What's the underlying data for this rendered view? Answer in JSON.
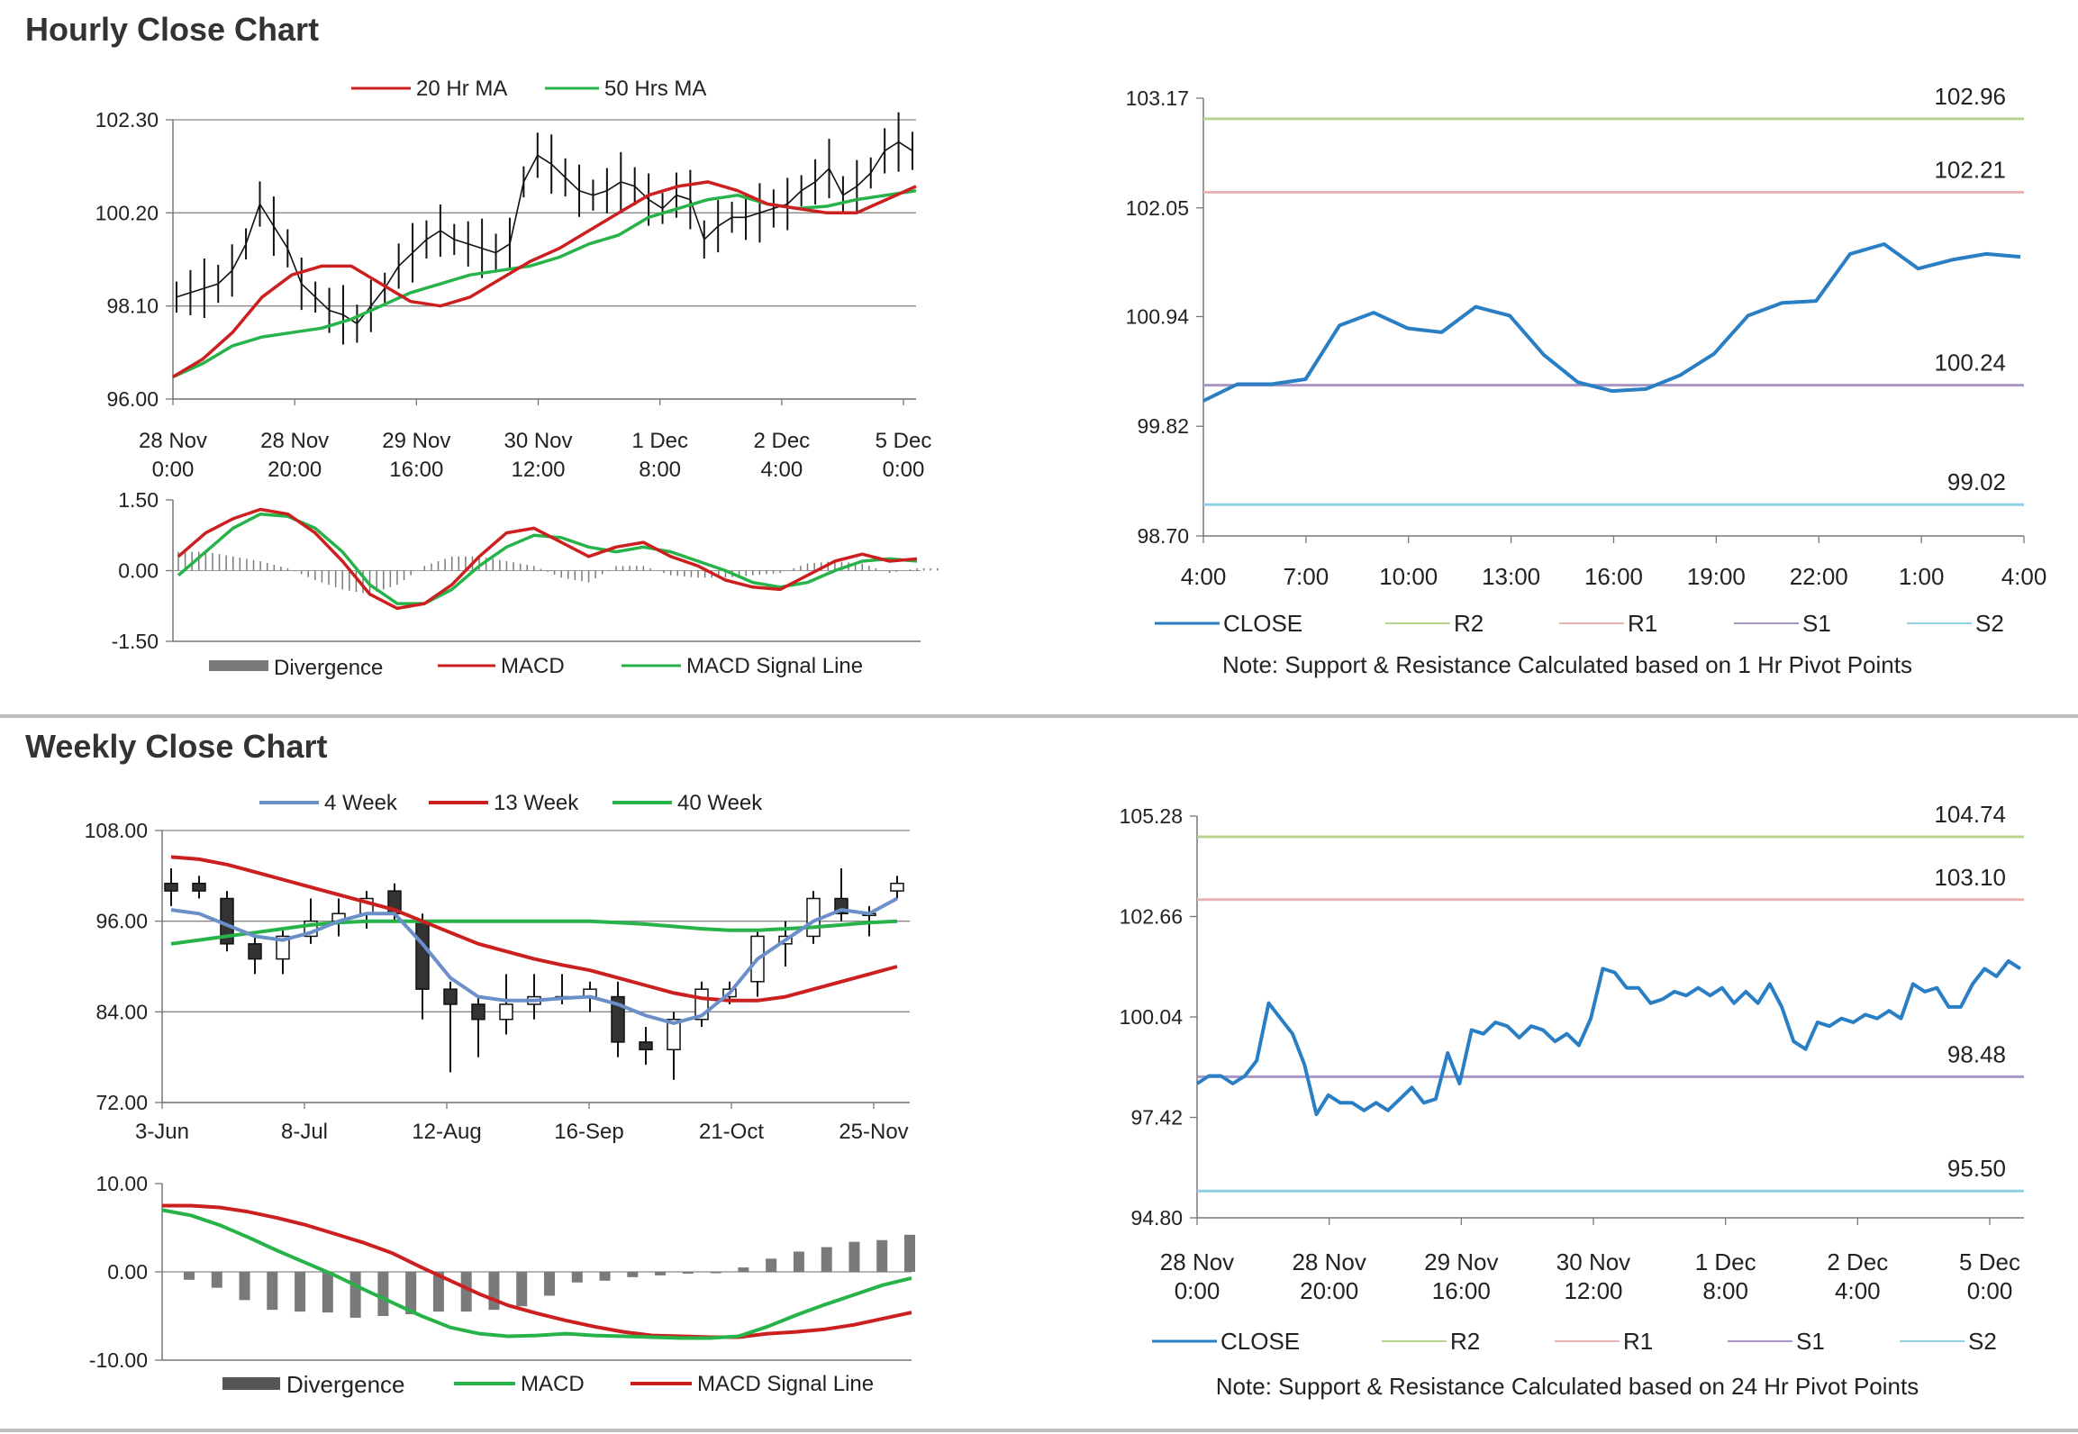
{
  "sections": {
    "hourly_title": "Hourly Close Chart",
    "weekly_title": "Weekly Close Chart"
  },
  "colors": {
    "close": "#2a7fc4",
    "r2": "#b7d38f",
    "r1": "#eab3b3",
    "s1": "#a896c8",
    "s2": "#8fd0e2",
    "ma_red": "#cc1f1f",
    "ma_green": "#27b34a",
    "ma_blue": "#6a8fc9",
    "divergence": "#7a7a7a",
    "candle": "#111111"
  },
  "chart_data": [
    {
      "id": "hourly_price",
      "type": "candlestick",
      "legend": [
        "20 Hr MA",
        "50 Hrs MA"
      ],
      "ylim": [
        96.0,
        102.3
      ],
      "yticks": [
        "102.30",
        "100.20",
        "98.10",
        "96.00"
      ],
      "xticks": [
        [
          "28 Nov",
          "0:00"
        ],
        [
          "28 Nov",
          "20:00"
        ],
        [
          "29 Nov",
          "16:00"
        ],
        [
          "30 Nov",
          "12:00"
        ],
        [
          "1 Dec",
          "8:00"
        ],
        [
          "2 Dec",
          "4:00"
        ],
        [
          "5 Dec",
          "0:00"
        ]
      ],
      "close_path": [
        98.3,
        98.4,
        98.5,
        98.6,
        98.9,
        99.5,
        100.4,
        99.9,
        99.4,
        98.6,
        98.3,
        98.0,
        97.9,
        97.7,
        98.1,
        98.5,
        99.0,
        99.3,
        99.6,
        99.8,
        99.6,
        99.5,
        99.4,
        99.3,
        99.5,
        100.9,
        101.5,
        101.3,
        101.0,
        100.7,
        100.6,
        100.7,
        100.9,
        100.8,
        100.5,
        100.3,
        100.6,
        100.5,
        99.6,
        99.9,
        100.1,
        100.1,
        100.2,
        100.3,
        100.4,
        100.7,
        100.9,
        101.2,
        100.6,
        100.8,
        101.1,
        101.6,
        101.8,
        101.6
      ],
      "ma20": [
        96.5,
        96.9,
        97.5,
        98.3,
        98.8,
        99.0,
        99.0,
        98.6,
        98.2,
        98.1,
        98.3,
        98.7,
        99.1,
        99.4,
        99.8,
        100.2,
        100.6,
        100.8,
        100.9,
        100.7,
        100.4,
        100.3,
        100.2,
        100.2,
        100.5,
        100.8
      ],
      "ma50": [
        96.5,
        96.8,
        97.2,
        97.4,
        97.5,
        97.6,
        97.8,
        98.1,
        98.4,
        98.6,
        98.8,
        98.9,
        99.0,
        99.2,
        99.5,
        99.7,
        100.1,
        100.3,
        100.5,
        100.6,
        100.4,
        100.3,
        100.35,
        100.5,
        100.6,
        100.7
      ]
    },
    {
      "id": "hourly_macd",
      "type": "line",
      "legend": [
        "Divergence",
        "MACD",
        "MACD Signal Line"
      ],
      "ylim": [
        -1.5,
        1.5
      ],
      "yticks": [
        "1.50",
        "0.00",
        "-1.50"
      ],
      "macd": [
        0.3,
        0.8,
        1.1,
        1.3,
        1.2,
        0.8,
        0.2,
        -0.5,
        -0.8,
        -0.7,
        -0.3,
        0.3,
        0.8,
        0.9,
        0.6,
        0.3,
        0.5,
        0.6,
        0.3,
        0.1,
        -0.2,
        -0.35,
        -0.4,
        -0.1,
        0.2,
        0.35,
        0.2,
        0.25
      ],
      "signal": [
        -0.1,
        0.4,
        0.9,
        1.2,
        1.15,
        0.9,
        0.4,
        -0.3,
        -0.7,
        -0.7,
        -0.4,
        0.1,
        0.5,
        0.75,
        0.7,
        0.5,
        0.4,
        0.5,
        0.4,
        0.2,
        0.0,
        -0.25,
        -0.35,
        -0.25,
        0.0,
        0.2,
        0.25,
        0.2
      ],
      "divergence": [
        0.4,
        0.4,
        0.3,
        0.2,
        0.05,
        -0.2,
        -0.4,
        -0.5,
        -0.3,
        0.1,
        0.3,
        0.3,
        0.2,
        0.1,
        -0.15,
        -0.25,
        0.1,
        0.1,
        -0.1,
        -0.15,
        -0.15,
        -0.1,
        -0.05,
        0.15,
        0.2,
        0.15,
        -0.05,
        0.05
      ]
    },
    {
      "id": "hourly_pivot",
      "type": "line",
      "ylim": [
        98.7,
        103.17
      ],
      "yticks": [
        "103.17",
        "102.05",
        "100.94",
        "99.82",
        "98.70"
      ],
      "xticks": [
        "4:00",
        "7:00",
        "10:00",
        "13:00",
        "16:00",
        "19:00",
        "22:00",
        "1:00",
        "4:00"
      ],
      "levels": [
        {
          "name": "R2",
          "value": 102.96,
          "label": "102.96"
        },
        {
          "name": "R1",
          "value": 102.21,
          "label": "102.21"
        },
        {
          "name": "S1",
          "value": 100.24,
          "label": "100.24"
        },
        {
          "name": "S2",
          "value": 99.02,
          "label": "99.02"
        }
      ],
      "close": [
        100.08,
        100.25,
        100.25,
        100.3,
        100.85,
        100.98,
        100.82,
        100.78,
        101.04,
        100.95,
        100.55,
        100.27,
        100.18,
        100.2,
        100.34,
        100.56,
        100.95,
        101.08,
        101.1,
        101.58,
        101.68,
        101.43,
        101.52,
        101.58,
        101.55
      ],
      "legend": [
        "CLOSE",
        "R2",
        "R1",
        "S1",
        "S2"
      ],
      "note": "Note: Support & Resistance Calculated based on 1 Hr Pivot Points"
    },
    {
      "id": "weekly_price",
      "type": "candlestick",
      "legend": [
        "4 Week",
        "13 Week",
        "40 Week"
      ],
      "ylim": [
        72,
        108
      ],
      "yticks": [
        "108.00",
        "96.00",
        "84.00",
        "72.00"
      ],
      "xticks": [
        "3-Jun",
        "8-Jul",
        "12-Aug",
        "16-Sep",
        "21-Oct",
        "25-Nov"
      ],
      "candles": [
        {
          "o": 101,
          "c": 100,
          "h": 103,
          "l": 98
        },
        {
          "o": 101,
          "c": 100,
          "h": 102,
          "l": 99
        },
        {
          "o": 99,
          "c": 93,
          "h": 100,
          "l": 92
        },
        {
          "o": 93,
          "c": 91,
          "h": 94,
          "l": 89
        },
        {
          "o": 91,
          "c": 94,
          "h": 95,
          "l": 89
        },
        {
          "o": 94,
          "c": 96,
          "h": 99,
          "l": 93
        },
        {
          "o": 96,
          "c": 97,
          "h": 99,
          "l": 94
        },
        {
          "o": 97,
          "c": 99,
          "h": 100,
          "l": 95
        },
        {
          "o": 100,
          "c": 97,
          "h": 101,
          "l": 96
        },
        {
          "o": 96,
          "c": 87,
          "h": 97,
          "l": 83
        },
        {
          "o": 87,
          "c": 85,
          "h": 88,
          "l": 76
        },
        {
          "o": 85,
          "c": 83,
          "h": 86,
          "l": 78
        },
        {
          "o": 83,
          "c": 85,
          "h": 89,
          "l": 81
        },
        {
          "o": 85,
          "c": 86,
          "h": 89,
          "l": 83
        },
        {
          "o": 86,
          "c": 86,
          "h": 89,
          "l": 85
        },
        {
          "o": 86,
          "c": 87,
          "h": 88,
          "l": 84
        },
        {
          "o": 86,
          "c": 80,
          "h": 88,
          "l": 78
        },
        {
          "o": 80,
          "c": 79,
          "h": 82,
          "l": 77
        },
        {
          "o": 79,
          "c": 83,
          "h": 84,
          "l": 75
        },
        {
          "o": 83,
          "c": 87,
          "h": 88,
          "l": 82
        },
        {
          "o": 86,
          "c": 87,
          "h": 88,
          "l": 85
        },
        {
          "o": 88,
          "c": 94,
          "h": 95,
          "l": 86
        },
        {
          "o": 93,
          "c": 94,
          "h": 96,
          "l": 90
        },
        {
          "o": 94,
          "c": 99,
          "h": 100,
          "l": 93
        },
        {
          "o": 99,
          "c": 97,
          "h": 103,
          "l": 96
        },
        {
          "o": 97,
          "c": 97,
          "h": 98,
          "l": 94
        },
        {
          "o": 100,
          "c": 101,
          "h": 102,
          "l": 99
        }
      ],
      "ma4": [
        97.5,
        97.0,
        95.5,
        94.0,
        93.5,
        94.5,
        96.0,
        97.0,
        97.0,
        93.0,
        88.5,
        86.0,
        85.5,
        85.5,
        85.8,
        86.0,
        85.0,
        83.5,
        82.5,
        83.5,
        86.5,
        91.0,
        93.5,
        96.0,
        97.5,
        97.0,
        99.0
      ],
      "ma13": [
        104.5,
        104.2,
        103.5,
        102.5,
        101.5,
        100.5,
        99.5,
        98.5,
        97.5,
        96.0,
        94.5,
        93.0,
        92.0,
        91.0,
        90.2,
        89.5,
        88.5,
        87.5,
        86.5,
        85.8,
        85.5,
        85.5,
        86.0,
        87.0,
        88.0,
        89.0,
        90.0
      ],
      "ma40": [
        93.0,
        93.5,
        94.0,
        94.5,
        95.0,
        95.5,
        95.8,
        96.0,
        96.0,
        96.0,
        96.0,
        96.0,
        96.0,
        96.0,
        96.0,
        96.0,
        95.8,
        95.6,
        95.3,
        95.0,
        94.8,
        94.8,
        95.0,
        95.2,
        95.5,
        95.8,
        96.0
      ]
    },
    {
      "id": "weekly_macd",
      "type": "line",
      "legend": [
        "Divergence",
        "MACD",
        "MACD Signal Line"
      ],
      "ylim": [
        -10,
        10
      ],
      "yticks": [
        "10.00",
        "0.00",
        "-10.00"
      ],
      "macd": [
        7.0,
        6.4,
        5.3,
        3.9,
        2.4,
        1.0,
        -0.4,
        -2.0,
        -3.5,
        -5.0,
        -6.3,
        -7.0,
        -7.3,
        -7.2,
        -7.0,
        -7.2,
        -7.3,
        -7.4,
        -7.5,
        -7.5,
        -7.3,
        -6.2,
        -4.9,
        -3.7,
        -2.6,
        -1.5,
        -0.7
      ],
      "signal": [
        7.5,
        7.5,
        7.3,
        6.8,
        6.1,
        5.3,
        4.3,
        3.3,
        2.1,
        0.5,
        -1.0,
        -2.5,
        -3.8,
        -4.7,
        -5.5,
        -6.2,
        -6.8,
        -7.2,
        -7.3,
        -7.4,
        -7.4,
        -7.0,
        -6.8,
        -6.5,
        -6.0,
        -5.3,
        -4.6
      ],
      "divergence": [
        -0.9,
        -1.8,
        -3.2,
        -4.3,
        -4.5,
        -4.6,
        -5.2,
        -5.0,
        -4.8,
        -4.5,
        -4.5,
        -4.3,
        -3.9,
        -2.7,
        -1.2,
        -1.0,
        -0.6,
        -0.4,
        -0.2,
        0.0,
        0.5,
        1.5,
        2.3,
        2.8,
        3.4,
        3.6,
        4.2
      ]
    },
    {
      "id": "weekly_pivot",
      "type": "line",
      "ylim": [
        94.8,
        105.28
      ],
      "yticks": [
        "105.28",
        "102.66",
        "100.04",
        "97.42",
        "94.80"
      ],
      "xticks": [
        [
          "28 Nov",
          "0:00"
        ],
        [
          "28 Nov",
          "20:00"
        ],
        [
          "29 Nov",
          "16:00"
        ],
        [
          "30 Nov",
          "12:00"
        ],
        [
          "1 Dec",
          "8:00"
        ],
        [
          "2 Dec",
          "4:00"
        ],
        [
          "5 Dec",
          "0:00"
        ]
      ],
      "levels": [
        {
          "name": "R2",
          "value": 104.74,
          "label": "104.74"
        },
        {
          "name": "R1",
          "value": 103.1,
          "label": "103.10"
        },
        {
          "name": "S1",
          "value": 98.48,
          "label": "98.48"
        },
        {
          "name": "S2",
          "value": 95.5,
          "label": "95.50"
        }
      ],
      "close": [
        98.3,
        98.5,
        98.5,
        98.3,
        98.5,
        98.9,
        100.4,
        100.0,
        99.6,
        98.8,
        97.5,
        98.0,
        97.8,
        97.8,
        97.6,
        97.8,
        97.6,
        97.9,
        98.2,
        97.8,
        97.9,
        99.1,
        98.3,
        99.7,
        99.6,
        99.9,
        99.8,
        99.5,
        99.8,
        99.7,
        99.4,
        99.6,
        99.3,
        100.0,
        101.3,
        101.2,
        100.8,
        100.8,
        100.4,
        100.5,
        100.7,
        100.6,
        100.8,
        100.6,
        100.8,
        100.4,
        100.7,
        100.4,
        100.9,
        100.3,
        99.4,
        99.2,
        99.9,
        99.8,
        100.0,
        99.9,
        100.1,
        100.0,
        100.2,
        100.0,
        100.9,
        100.7,
        100.8,
        100.3,
        100.3,
        100.9,
        101.3,
        101.1,
        101.5,
        101.3
      ],
      "legend": [
        "CLOSE",
        "R2",
        "R1",
        "S1",
        "S2"
      ],
      "note": "Note:  Support & Resistance Calculated based on 24 Hr Pivot Points"
    }
  ]
}
